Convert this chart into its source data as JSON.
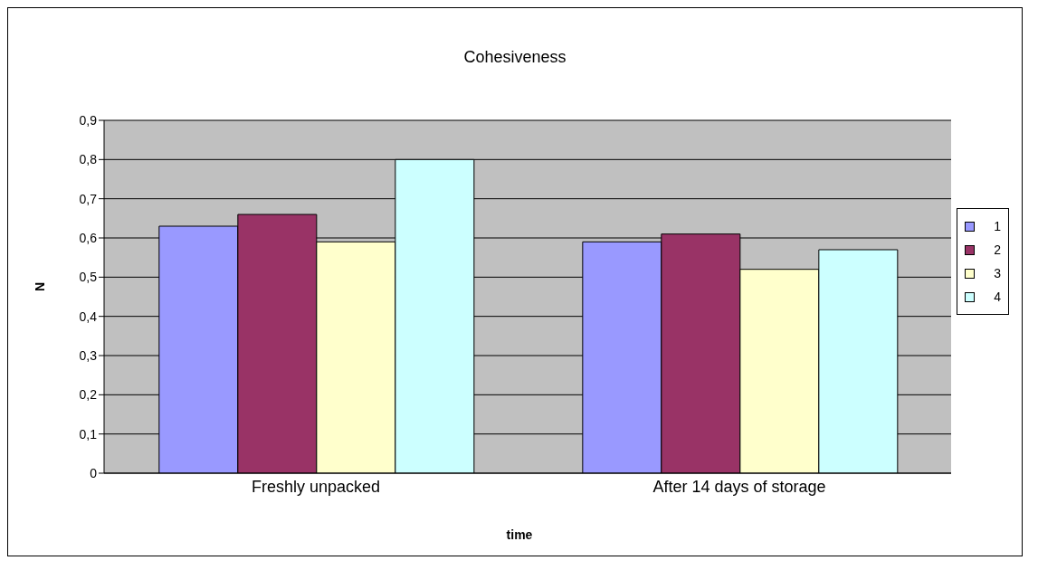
{
  "chart_data": {
    "type": "bar",
    "title": "Cohesiveness",
    "xlabel": "time",
    "ylabel": "N",
    "categories": [
      "Freshly unpacked",
      "After 14 days of storage"
    ],
    "series": [
      {
        "name": "1",
        "color": "#9999ff",
        "values": [
          0.63,
          0.59
        ]
      },
      {
        "name": "2",
        "color": "#993366",
        "values": [
          0.66,
          0.61
        ]
      },
      {
        "name": "3",
        "color": "#ffffcc",
        "values": [
          0.59,
          0.52
        ]
      },
      {
        "name": "4",
        "color": "#ccffff",
        "values": [
          0.8,
          0.57
        ]
      }
    ],
    "ylim": [
      0,
      0.9
    ],
    "yticks": [
      0,
      {
        "value": 0.1,
        "label": "0,1"
      },
      {
        "value": 0.2,
        "label": "0,2"
      },
      {
        "value": 0.3,
        "label": "0,3"
      },
      {
        "value": 0.4,
        "label": "0,4"
      },
      {
        "value": 0.5,
        "label": "0,5"
      },
      {
        "value": 0.6,
        "label": "0,6"
      },
      {
        "value": 0.7,
        "label": "0,7"
      },
      {
        "value": 0.8,
        "label": "0,8"
      },
      {
        "value": 0.9,
        "label": "0,9"
      }
    ],
    "grid": "y",
    "legend": "right"
  }
}
